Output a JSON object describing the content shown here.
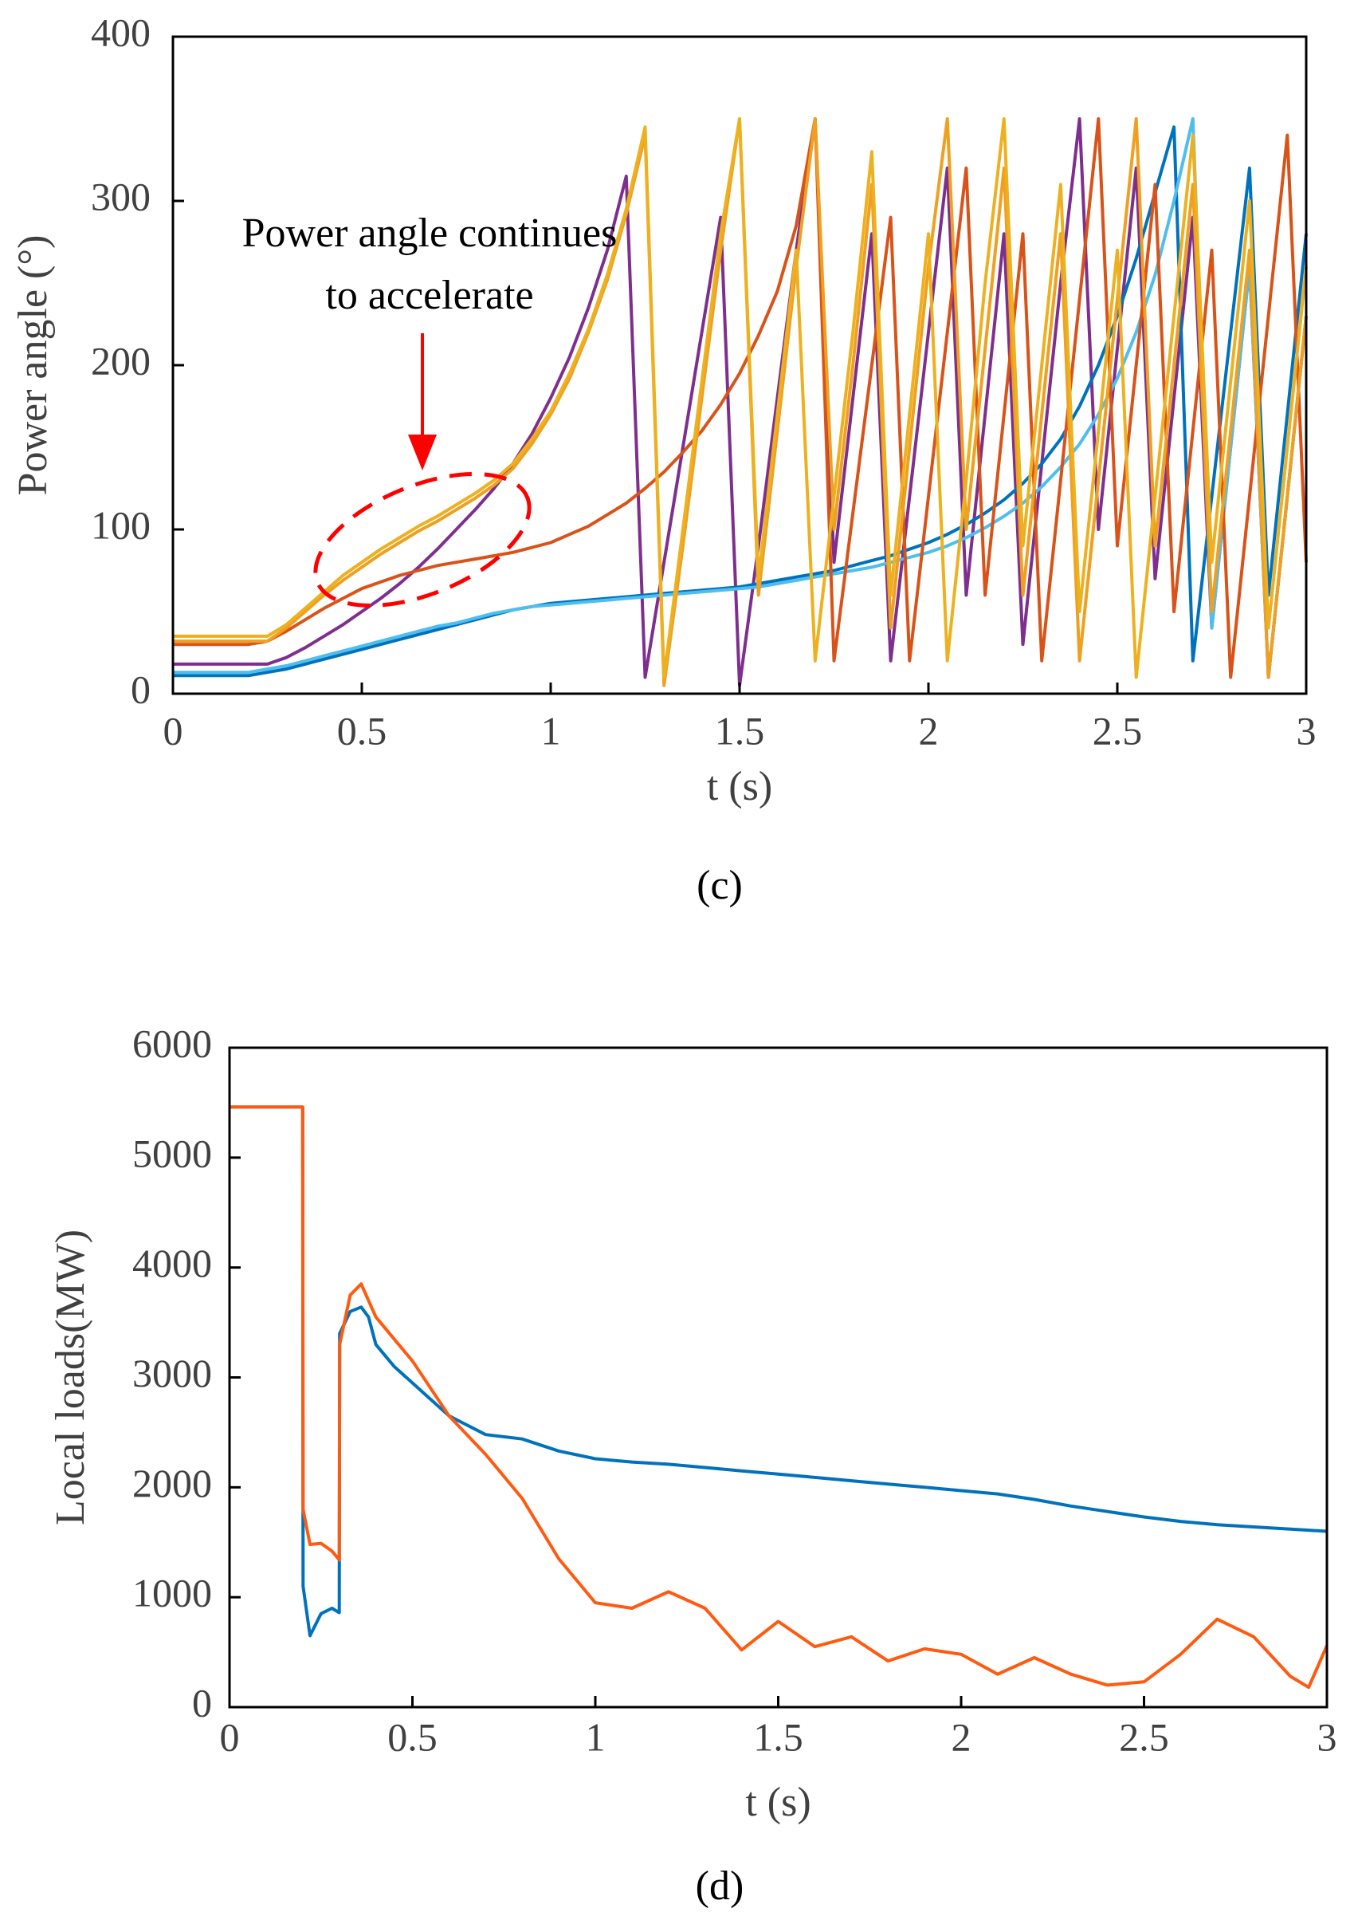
{
  "chart_data": [
    {
      "type": "line",
      "caption": "(c)",
      "xlabel": "t (s)",
      "ylabel": "Power angle (°)",
      "annotation": [
        "Power angle continues",
        "to accelerate"
      ],
      "xlim": [
        0,
        3
      ],
      "xticks": [
        0,
        0.5,
        1,
        1.5,
        2,
        2.5,
        3
      ],
      "ylim": [
        0,
        400
      ],
      "yticks": [
        0,
        100,
        200,
        300,
        400
      ],
      "x": [
        0,
        0.05,
        0.1,
        0.15,
        0.2,
        0.25,
        0.3,
        0.35,
        0.4,
        0.45,
        0.5,
        0.55,
        0.6,
        0.65,
        0.7,
        0.75,
        0.8,
        0.85,
        0.9,
        0.95,
        1,
        1.05,
        1.1,
        1.15,
        1.2,
        1.25,
        1.3,
        1.35,
        1.4,
        1.45,
        1.5,
        1.55,
        1.6,
        1.65,
        1.7,
        1.75,
        1.8,
        1.85,
        1.9,
        1.95,
        2,
        2.05,
        2.1,
        2.15,
        2.2,
        2.25,
        2.3,
        2.35,
        2.4,
        2.45,
        2.5,
        2.55,
        2.6,
        2.65,
        2.7,
        2.75,
        2.8,
        2.85,
        2.9,
        2.95,
        3
      ],
      "series": [
        {
          "color": "#7E2F8E",
          "values": [
            18,
            18,
            18,
            18,
            18,
            18,
            22,
            28,
            35,
            42,
            50,
            58,
            67,
            77,
            88,
            100,
            112,
            125,
            140,
            158,
            180,
            205,
            235,
            270,
            315,
            10,
            80,
            150,
            220,
            290,
            5,
            90,
            180,
            270,
            350,
            80,
            180,
            280,
            20,
            120,
            220,
            320,
            60,
            170,
            280,
            30,
            140,
            250,
            350,
            100,
            210,
            320,
            70,
            180,
            290,
            40,
            150,
            260,
            10,
            120,
            230
          ]
        },
        {
          "color": "#0072BD",
          "values": [
            11,
            11,
            11,
            11,
            11,
            13,
            15,
            18,
            21,
            24,
            27,
            30,
            33,
            36,
            39,
            42,
            45,
            48,
            51,
            53,
            55,
            56,
            57,
            58,
            59,
            60,
            61,
            62,
            63,
            64,
            65,
            67,
            69,
            71,
            73,
            75,
            78,
            81,
            84,
            88,
            92,
            97,
            103,
            110,
            118,
            128,
            140,
            155,
            175,
            200,
            230,
            265,
            305,
            345,
            20,
            120,
            220,
            320,
            60,
            170,
            280
          ]
        },
        {
          "color": "#4DBEEE",
          "values": [
            13,
            13,
            13,
            13,
            13,
            15,
            17,
            20,
            23,
            26,
            29,
            32,
            35,
            38,
            41,
            43,
            46,
            49,
            51,
            53,
            54,
            55,
            56,
            57,
            58,
            59,
            60,
            61,
            62,
            63,
            64,
            65,
            67,
            69,
            71,
            73,
            75,
            77,
            80,
            83,
            86,
            90,
            95,
            101,
            108,
            116,
            126,
            138,
            152,
            170,
            192,
            220,
            255,
            300,
            350,
            40,
            150,
            260,
            10,
            120,
            230
          ]
        },
        {
          "color": "#D95319",
          "values": [
            30,
            30,
            30,
            30,
            30,
            32,
            38,
            45,
            52,
            58,
            64,
            68,
            72,
            75,
            78,
            80,
            82,
            84,
            86,
            89,
            92,
            97,
            102,
            109,
            116,
            125,
            135,
            147,
            160,
            176,
            195,
            218,
            245,
            285,
            350,
            20,
            110,
            200,
            290,
            20,
            120,
            220,
            320,
            60,
            170,
            280,
            20,
            130,
            240,
            350,
            90,
            200,
            310,
            50,
            160,
            270,
            10,
            120,
            230,
            340,
            80
          ]
        },
        {
          "color": "#F0A020",
          "values": [
            32,
            32,
            32,
            32,
            32,
            32,
            40,
            50,
            60,
            69,
            77,
            85,
            92,
            99,
            105,
            112,
            119,
            127,
            137,
            152,
            170,
            192,
            220,
            252,
            292,
            340,
            5,
            90,
            180,
            270,
            350,
            60,
            160,
            260,
            350,
            100,
            200,
            310,
            40,
            150,
            260,
            350,
            100,
            210,
            320,
            60,
            170,
            280,
            20,
            130,
            240,
            350,
            90,
            200,
            310,
            50,
            160,
            270,
            10,
            120,
            230
          ]
        },
        {
          "color": "#EDB120",
          "values": [
            35,
            35,
            35,
            35,
            35,
            35,
            42,
            52,
            62,
            72,
            80,
            88,
            95,
            102,
            108,
            115,
            122,
            130,
            140,
            155,
            172,
            195,
            222,
            255,
            295,
            345,
            10,
            100,
            190,
            280,
            350,
            70,
            170,
            270,
            20,
            120,
            220,
            330,
            60,
            170,
            280,
            20,
            130,
            250,
            350,
            90,
            200,
            310,
            50,
            160,
            270,
            10,
            120,
            230,
            340,
            80,
            190,
            300,
            40,
            150,
            260
          ]
        }
      ]
    },
    {
      "type": "line",
      "caption": "(d)",
      "xlabel": "t (s)",
      "ylabel": "Local loads(MW)",
      "xlim": [
        0,
        3
      ],
      "xticks": [
        0,
        0.5,
        1,
        1.5,
        2,
        2.5,
        3
      ],
      "ylim": [
        0,
        6000
      ],
      "yticks": [
        0,
        1000,
        2000,
        3000,
        4000,
        5000,
        6000
      ],
      "x": [
        0,
        0.2,
        0.201,
        0.22,
        0.25,
        0.28,
        0.3,
        0.301,
        0.33,
        0.36,
        0.38,
        0.4,
        0.45,
        0.5,
        0.55,
        0.6,
        0.7,
        0.8,
        0.9,
        1,
        1.1,
        1.2,
        1.3,
        1.4,
        1.5,
        1.6,
        1.7,
        1.8,
        1.9,
        2,
        2.1,
        2.2,
        2.3,
        2.4,
        2.5,
        2.6,
        2.7,
        2.8,
        2.9,
        2.95,
        3
      ],
      "series": [
        {
          "color": "#0072BD",
          "values": [
            5460,
            5460,
            1100,
            650,
            850,
            900,
            860,
            3400,
            3600,
            3640,
            3550,
            3300,
            3100,
            2950,
            2800,
            2650,
            2480,
            2440,
            2330,
            2260,
            2230,
            2210,
            2180,
            2150,
            2120,
            2090,
            2060,
            2030,
            2000,
            1970,
            1940,
            1890,
            1830,
            1780,
            1730,
            1690,
            1660,
            1640,
            1620,
            1610,
            1600
          ]
        },
        {
          "color": "#FF5A0F",
          "values": [
            5460,
            5460,
            1800,
            1480,
            1490,
            1420,
            1340,
            3300,
            3750,
            3850,
            3700,
            3550,
            3350,
            3150,
            2900,
            2650,
            2300,
            1900,
            1350,
            950,
            900,
            1050,
            900,
            520,
            780,
            550,
            640,
            420,
            530,
            480,
            300,
            450,
            300,
            200,
            230,
            480,
            800,
            640,
            280,
            180,
            560
          ]
        }
      ]
    }
  ]
}
